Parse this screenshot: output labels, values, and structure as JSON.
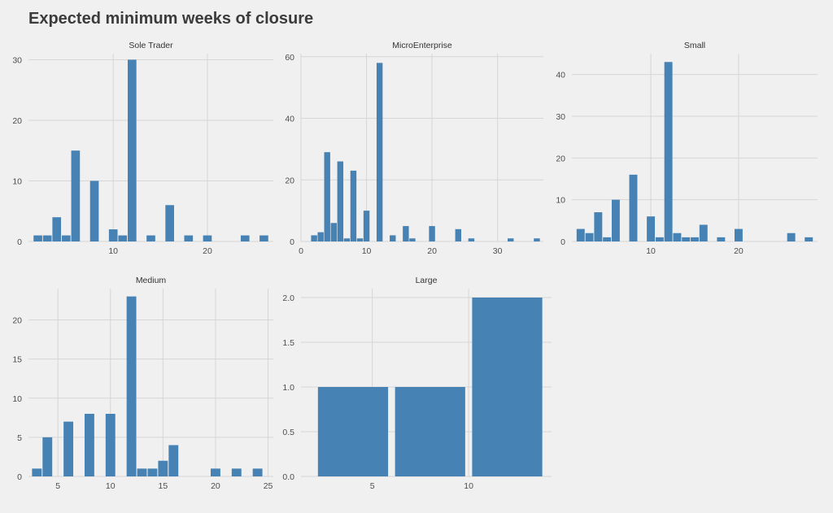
{
  "title": "Expected minimum weeks of closure",
  "colors": {
    "bar": "#4682b4",
    "background": "#f0f0f0",
    "grid": "#d6d6d6"
  },
  "chart_data": [
    {
      "type": "bar",
      "facet": "Sole Trader",
      "xlim": [
        1,
        27
      ],
      "ylim": [
        0,
        31
      ],
      "xticks": [
        10,
        20
      ],
      "yticks": [
        0,
        10,
        20,
        30
      ],
      "binwidth": 0.92,
      "bars": [
        {
          "x": 2,
          "y": 1
        },
        {
          "x": 3,
          "y": 1
        },
        {
          "x": 4,
          "y": 4
        },
        {
          "x": 5,
          "y": 1
        },
        {
          "x": 6,
          "y": 15
        },
        {
          "x": 8,
          "y": 10
        },
        {
          "x": 10,
          "y": 2
        },
        {
          "x": 11,
          "y": 1
        },
        {
          "x": 12,
          "y": 30
        },
        {
          "x": 14,
          "y": 1
        },
        {
          "x": 16,
          "y": 6
        },
        {
          "x": 18,
          "y": 1
        },
        {
          "x": 20,
          "y": 1
        },
        {
          "x": 24,
          "y": 1
        },
        {
          "x": 26,
          "y": 1
        }
      ]
    },
    {
      "type": "bar",
      "facet": "MicroEnterprise",
      "xlim": [
        0,
        37
      ],
      "ylim": [
        0,
        61
      ],
      "xticks": [
        0,
        10,
        20,
        30
      ],
      "yticks": [
        0,
        20,
        40,
        60
      ],
      "binwidth": 0.92,
      "bars": [
        {
          "x": 2,
          "y": 2
        },
        {
          "x": 3,
          "y": 3
        },
        {
          "x": 4,
          "y": 29
        },
        {
          "x": 5,
          "y": 6
        },
        {
          "x": 6,
          "y": 26
        },
        {
          "x": 7,
          "y": 1
        },
        {
          "x": 8,
          "y": 23
        },
        {
          "x": 9,
          "y": 1
        },
        {
          "x": 10,
          "y": 10
        },
        {
          "x": 12,
          "y": 58
        },
        {
          "x": 14,
          "y": 2
        },
        {
          "x": 16,
          "y": 5
        },
        {
          "x": 17,
          "y": 1
        },
        {
          "x": 20,
          "y": 5
        },
        {
          "x": 24,
          "y": 4
        },
        {
          "x": 26,
          "y": 1
        },
        {
          "x": 32,
          "y": 1
        },
        {
          "x": 36,
          "y": 1
        }
      ]
    },
    {
      "type": "bar",
      "facet": "Small",
      "xlim": [
        1,
        29
      ],
      "ylim": [
        0,
        45
      ],
      "xticks": [
        10,
        20
      ],
      "yticks": [
        0,
        10,
        20,
        30,
        40
      ],
      "binwidth": 0.92,
      "bars": [
        {
          "x": 2,
          "y": 3
        },
        {
          "x": 3,
          "y": 2
        },
        {
          "x": 4,
          "y": 7
        },
        {
          "x": 5,
          "y": 1
        },
        {
          "x": 6,
          "y": 10
        },
        {
          "x": 8,
          "y": 16
        },
        {
          "x": 10,
          "y": 6
        },
        {
          "x": 11,
          "y": 1
        },
        {
          "x": 12,
          "y": 43
        },
        {
          "x": 13,
          "y": 2
        },
        {
          "x": 14,
          "y": 1
        },
        {
          "x": 15,
          "y": 1
        },
        {
          "x": 16,
          "y": 4
        },
        {
          "x": 18,
          "y": 1
        },
        {
          "x": 20,
          "y": 3
        },
        {
          "x": 26,
          "y": 2
        },
        {
          "x": 28,
          "y": 1
        }
      ]
    },
    {
      "type": "bar",
      "facet": "Medium",
      "xlim": [
        2.2,
        25.5
      ],
      "ylim": [
        0,
        24
      ],
      "xticks": [
        5,
        10,
        15,
        20,
        25
      ],
      "yticks": [
        0,
        5,
        10,
        15,
        20
      ],
      "binwidth": 0.92,
      "bars": [
        {
          "x": 3,
          "y": 1
        },
        {
          "x": 4,
          "y": 5
        },
        {
          "x": 6,
          "y": 7
        },
        {
          "x": 8,
          "y": 8
        },
        {
          "x": 10,
          "y": 8
        },
        {
          "x": 12,
          "y": 23
        },
        {
          "x": 13,
          "y": 1
        },
        {
          "x": 14,
          "y": 1
        },
        {
          "x": 15,
          "y": 2
        },
        {
          "x": 16,
          "y": 4
        },
        {
          "x": 20,
          "y": 1
        },
        {
          "x": 22,
          "y": 1
        },
        {
          "x": 24,
          "y": 1
        }
      ]
    },
    {
      "type": "bar",
      "facet": "Large",
      "xlim": [
        1.3,
        14.3
      ],
      "ylim": [
        0,
        2.1
      ],
      "xticks": [
        5,
        10
      ],
      "yticks": [
        0.0,
        0.5,
        1.0,
        1.5,
        2.0
      ],
      "ytick_labels": [
        "0.0",
        "0.5",
        "1.0",
        "1.5",
        "2.0"
      ],
      "binwidth": 3.64,
      "bars": [
        {
          "x": 4,
          "y": 1
        },
        {
          "x": 8,
          "y": 1
        },
        {
          "x": 12,
          "y": 2
        }
      ]
    }
  ]
}
